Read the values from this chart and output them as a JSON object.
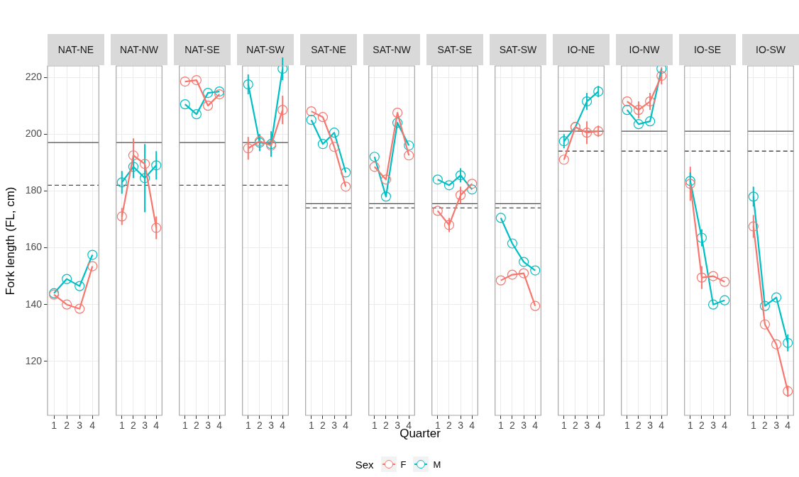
{
  "chart_data": [
    {
      "type": "line",
      "title": "NAT-NE",
      "ylabel": "Fork length (FL, cm)",
      "legend_title": "Sex",
      "legend": "bottom",
      "categories": [
        "1",
        "2",
        "3",
        "4"
      ],
      "ylim": [
        101,
        224
      ],
      "yticks": [
        120,
        140,
        160,
        180,
        200,
        220
      ],
      "grid": true,
      "marker": "circle",
      "ref_lines": [
        {
          "axis": "y",
          "value": 197,
          "color": "#4d4d4d",
          "line_style": "solid"
        },
        {
          "axis": "y",
          "value": 182,
          "color": "#4d4d4d",
          "line_style": "dashed"
        }
      ],
      "series": [
        {
          "name": "F",
          "color": "#f8766d",
          "values": [
            143.5,
            140,
            138.5,
            153.5
          ]
        },
        {
          "name": "M",
          "color": "#00bfc4",
          "values": [
            144,
            149,
            146.5,
            157.5
          ]
        }
      ]
    },
    {
      "type": "line",
      "title": "NAT-NW",
      "categories": [
        "1",
        "2",
        "3",
        "4"
      ],
      "ylim": [
        101,
        224
      ],
      "yticks": [
        120,
        140,
        160,
        180,
        200,
        220
      ],
      "tick_labels": "x",
      "grid": true,
      "marker": "circle",
      "ref_lines": [
        {
          "axis": "y",
          "value": 197,
          "color": "#4d4d4d",
          "line_style": "solid"
        },
        {
          "axis": "y",
          "value": 182,
          "color": "#4d4d4d",
          "line_style": "dashed"
        }
      ],
      "series": [
        {
          "color": "#f8766d",
          "values": [
            171,
            192.5,
            189.5,
            167
          ],
          "errors": [
            3,
            6,
            null,
            4
          ]
        },
        {
          "color": "#00bfc4",
          "values": [
            183,
            188.5,
            184.5,
            189
          ],
          "errors": [
            4,
            4,
            12,
            5
          ]
        }
      ]
    },
    {
      "type": "line",
      "title": "NAT-SE",
      "categories": [
        "1",
        "2",
        "3",
        "4"
      ],
      "ylim": [
        101,
        224
      ],
      "yticks": [
        120,
        140,
        160,
        180,
        200,
        220
      ],
      "tick_labels": "x",
      "grid": true,
      "marker": "circle",
      "ref_lines": [
        {
          "axis": "y",
          "value": 197,
          "color": "#4d4d4d",
          "line_style": "solid"
        },
        {
          "axis": "y",
          "value": 182,
          "color": "#4d4d4d",
          "line_style": "dashed"
        }
      ],
      "series": [
        {
          "color": "#f8766d",
          "values": [
            218.5,
            219,
            210,
            214
          ]
        },
        {
          "color": "#00bfc4",
          "values": [
            210.5,
            207,
            214.5,
            215
          ]
        }
      ]
    },
    {
      "type": "line",
      "title": "NAT-SW",
      "categories": [
        "1",
        "2",
        "3",
        "4"
      ],
      "ylim": [
        101,
        224
      ],
      "yticks": [
        120,
        140,
        160,
        180,
        200,
        220
      ],
      "tick_labels": "x",
      "grid": true,
      "marker": "circle",
      "ref_lines": [
        {
          "axis": "y",
          "value": 197,
          "color": "#4d4d4d",
          "line_style": "solid"
        },
        {
          "axis": "y",
          "value": 182,
          "color": "#4d4d4d",
          "line_style": "dashed"
        }
      ],
      "series": [
        {
          "color": "#f8766d",
          "values": [
            195,
            197.5,
            196,
            208.5
          ],
          "errors": [
            4,
            null,
            2.5,
            5
          ]
        },
        {
          "color": "#00bfc4",
          "values": [
            217.5,
            197,
            196.5,
            223
          ],
          "errors": [
            3.5,
            3,
            4.5,
            4
          ]
        }
      ]
    },
    {
      "type": "line",
      "title": "SAT-NE",
      "categories": [
        "1",
        "2",
        "3",
        "4"
      ],
      "ylim": [
        101,
        224
      ],
      "yticks": [
        120,
        140,
        160,
        180,
        200,
        220
      ],
      "tick_labels": "x",
      "grid": true,
      "marker": "circle",
      "ref_lines": [
        {
          "axis": "y",
          "value": 175.5,
          "color": "#4d4d4d",
          "line_style": "solid"
        },
        {
          "axis": "y",
          "value": 174,
          "color": "#4d4d4d",
          "line_style": "dashed"
        }
      ],
      "series": [
        {
          "color": "#f8766d",
          "values": [
            208,
            206,
            195.5,
            181.5
          ]
        },
        {
          "color": "#00bfc4",
          "values": [
            205,
            196.5,
            200.5,
            186.5
          ]
        }
      ]
    },
    {
      "type": "line",
      "title": "SAT-NW",
      "xlabel": "Quarter",
      "categories": [
        "1",
        "2",
        "3",
        "4"
      ],
      "ylim": [
        101,
        224
      ],
      "yticks": [
        120,
        140,
        160,
        180,
        200,
        220
      ],
      "tick_labels": "x",
      "grid": true,
      "marker": "circle",
      "ref_lines": [
        {
          "axis": "y",
          "value": 175.5,
          "color": "#4d4d4d",
          "line_style": "solid"
        },
        {
          "axis": "y",
          "value": 174,
          "color": "#4d4d4d",
          "line_style": "dashed"
        }
      ],
      "series": [
        {
          "color": "#f8766d",
          "values": [
            188.5,
            184,
            207.5,
            192.5
          ]
        },
        {
          "color": "#00bfc4",
          "values": [
            192,
            178,
            204,
            196
          ]
        }
      ]
    },
    {
      "type": "line",
      "title": "SAT-SE",
      "categories": [
        "1",
        "2",
        "3",
        "4"
      ],
      "ylim": [
        101,
        224
      ],
      "yticks": [
        120,
        140,
        160,
        180,
        200,
        220
      ],
      "tick_labels": "x",
      "grid": true,
      "marker": "circle",
      "ref_lines": [
        {
          "axis": "y",
          "value": 175.5,
          "color": "#4d4d4d",
          "line_style": "solid"
        },
        {
          "axis": "y",
          "value": 174,
          "color": "#4d4d4d",
          "line_style": "dashed"
        }
      ],
      "series": [
        {
          "color": "#f8766d",
          "values": [
            173,
            168,
            178.5,
            182.5
          ],
          "errors": [
            null,
            2.5,
            3,
            null
          ]
        },
        {
          "color": "#00bfc4",
          "values": [
            184,
            182,
            185.5,
            180.5
          ],
          "errors": [
            null,
            null,
            2.5,
            null
          ]
        }
      ]
    },
    {
      "type": "line",
      "title": "SAT-SW",
      "categories": [
        "1",
        "2",
        "3",
        "4"
      ],
      "ylim": [
        101,
        224
      ],
      "yticks": [
        120,
        140,
        160,
        180,
        200,
        220
      ],
      "tick_labels": "x",
      "grid": true,
      "marker": "circle",
      "ref_lines": [
        {
          "axis": "y",
          "value": 175.5,
          "color": "#4d4d4d",
          "line_style": "solid"
        },
        {
          "axis": "y",
          "value": 174,
          "color": "#4d4d4d",
          "line_style": "dashed"
        }
      ],
      "series": [
        {
          "color": "#f8766d",
          "values": [
            148.5,
            150.5,
            151,
            139.5
          ]
        },
        {
          "color": "#00bfc4",
          "values": [
            170.5,
            161.5,
            155,
            152
          ]
        }
      ]
    },
    {
      "type": "line",
      "title": "IO-NE",
      "categories": [
        "1",
        "2",
        "3",
        "4"
      ],
      "ylim": [
        101,
        224
      ],
      "yticks": [
        120,
        140,
        160,
        180,
        200,
        220
      ],
      "tick_labels": "x",
      "grid": true,
      "marker": "circle",
      "ref_lines": [
        {
          "axis": "y",
          "value": 201,
          "color": "#4d4d4d",
          "line_style": "solid"
        },
        {
          "axis": "y",
          "value": 194,
          "color": "#4d4d4d",
          "line_style": "dashed"
        }
      ],
      "series": [
        {
          "color": "#f8766d",
          "values": [
            191,
            202.5,
            200.5,
            201
          ],
          "errors": [
            null,
            null,
            4,
            2
          ]
        },
        {
          "color": "#00bfc4",
          "values": [
            197.5,
            202.5,
            211.5,
            215
          ],
          "errors": [
            2.5,
            null,
            3,
            2
          ]
        }
      ]
    },
    {
      "type": "line",
      "title": "IO-NW",
      "categories": [
        "1",
        "2",
        "3",
        "4"
      ],
      "ylim": [
        101,
        224
      ],
      "yticks": [
        120,
        140,
        160,
        180,
        200,
        220
      ],
      "tick_labels": "x",
      "grid": true,
      "marker": "circle",
      "ref_lines": [
        {
          "axis": "y",
          "value": 201,
          "color": "#4d4d4d",
          "line_style": "solid"
        },
        {
          "axis": "y",
          "value": 194,
          "color": "#4d4d4d",
          "line_style": "dashed"
        }
      ],
      "series": [
        {
          "color": "#f8766d",
          "values": [
            211.5,
            208.5,
            211.5,
            220.5
          ],
          "errors": [
            null,
            3,
            3,
            3
          ]
        },
        {
          "color": "#00bfc4",
          "values": [
            208.5,
            203.5,
            204.5,
            223
          ]
        }
      ]
    },
    {
      "type": "line",
      "title": "IO-SE",
      "categories": [
        "1",
        "2",
        "3",
        "4"
      ],
      "ylim": [
        101,
        224
      ],
      "yticks": [
        120,
        140,
        160,
        180,
        200,
        220
      ],
      "tick_labels": "x",
      "grid": true,
      "marker": "circle",
      "ref_lines": [
        {
          "axis": "y",
          "value": 201,
          "color": "#4d4d4d",
          "line_style": "solid"
        },
        {
          "axis": "y",
          "value": 194,
          "color": "#4d4d4d",
          "line_style": "dashed"
        }
      ],
      "series": [
        {
          "color": "#f8766d",
          "values": [
            182.5,
            149.5,
            150,
            148
          ],
          "errors": [
            6,
            4,
            null,
            null
          ]
        },
        {
          "color": "#00bfc4",
          "values": [
            183.5,
            163.5,
            140,
            141.5
          ],
          "errors": [
            3,
            3,
            null,
            null
          ]
        }
      ]
    },
    {
      "type": "line",
      "title": "IO-SW",
      "categories": [
        "1",
        "2",
        "3",
        "4"
      ],
      "ylim": [
        101,
        224
      ],
      "yticks": [
        120,
        140,
        160,
        180,
        200,
        220
      ],
      "tick_labels": "x",
      "grid": true,
      "marker": "circle",
      "ref_lines": [
        {
          "axis": "y",
          "value": 201,
          "color": "#4d4d4d",
          "line_style": "solid"
        },
        {
          "axis": "y",
          "value": 194,
          "color": "#4d4d4d",
          "line_style": "dashed"
        }
      ],
      "series": [
        {
          "color": "#f8766d",
          "values": [
            167.5,
            133,
            126,
            109.5
          ],
          "errors": [
            4,
            null,
            null,
            2
          ]
        },
        {
          "color": "#00bfc4",
          "values": [
            178,
            139.5,
            142.5,
            126.5
          ],
          "errors": [
            3.5,
            null,
            null,
            3
          ]
        }
      ]
    }
  ]
}
